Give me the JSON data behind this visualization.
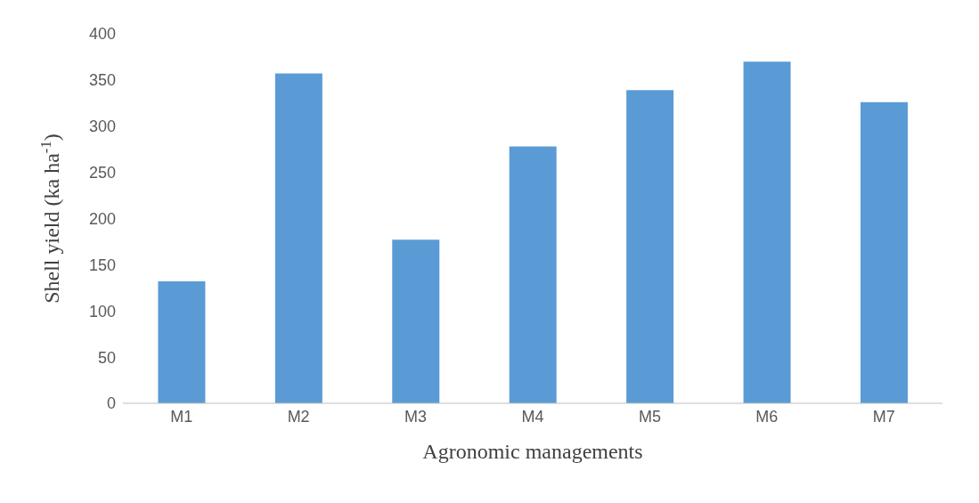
{
  "chart_data": {
    "type": "bar",
    "xlabel": "Agronomic managements",
    "ylabel": "Shell yield (ka ha$^{-1}$)",
    "categories": [
      "M1",
      "M2",
      "M3",
      "M4",
      "M5",
      "M6",
      "M7"
    ],
    "values": [
      132,
      357,
      177,
      278,
      339,
      370,
      326
    ],
    "color": "#5b9bd5",
    "ylim": [
      0,
      400
    ],
    "yticks": [
      0,
      50,
      100,
      150,
      200,
      250,
      300,
      350,
      400
    ],
    "grid": false
  }
}
